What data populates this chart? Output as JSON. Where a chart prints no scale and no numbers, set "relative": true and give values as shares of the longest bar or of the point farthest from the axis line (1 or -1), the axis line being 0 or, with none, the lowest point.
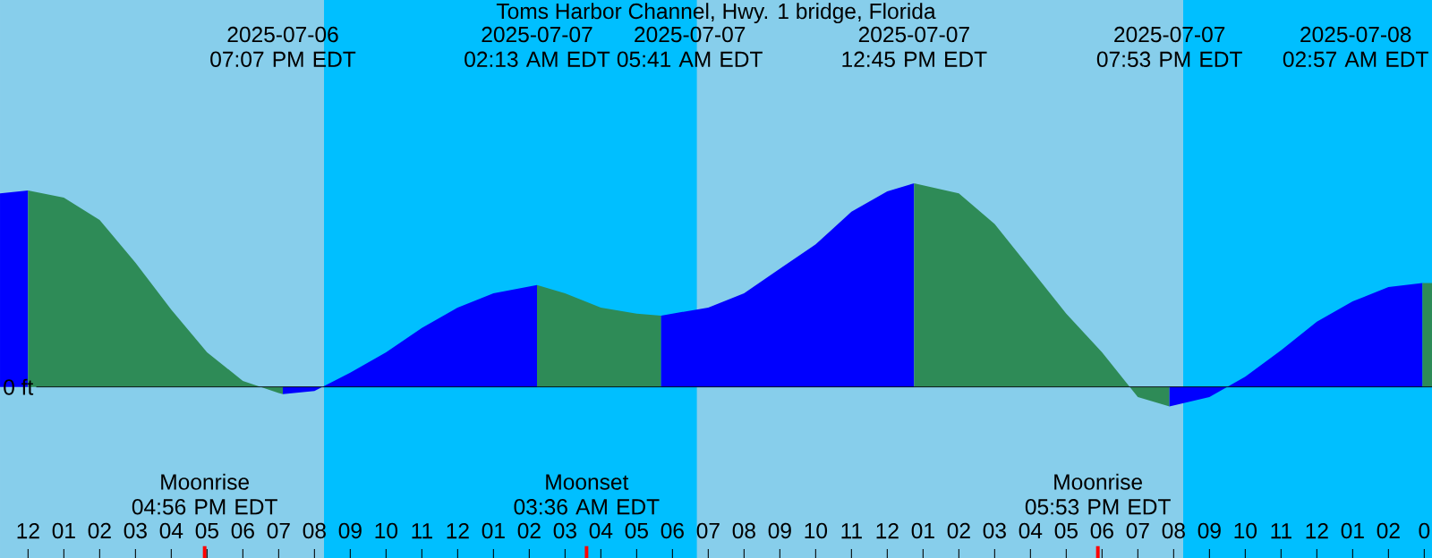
{
  "chart_data": {
    "type": "area",
    "title": "Toms Harbor Channel, Hwy. 1 bridge, Florida",
    "relative": true,
    "xlim": [
      "2025-07-06T11:13",
      "2025-07-08T03:13"
    ],
    "xticks": [
      {
        "value": "2025-07-06T12:00",
        "label": "12"
      },
      {
        "value": "2025-07-06T13:00",
        "label": "01"
      },
      {
        "value": "2025-07-06T14:00",
        "label": "02"
      },
      {
        "value": "2025-07-06T15:00",
        "label": "03"
      },
      {
        "value": "2025-07-06T16:00",
        "label": "04"
      },
      {
        "value": "2025-07-06T17:00",
        "label": "05"
      },
      {
        "value": "2025-07-06T18:00",
        "label": "06"
      },
      {
        "value": "2025-07-06T19:00",
        "label": "07"
      },
      {
        "value": "2025-07-06T20:00",
        "label": "08"
      },
      {
        "value": "2025-07-06T21:00",
        "label": "09"
      },
      {
        "value": "2025-07-06T22:00",
        "label": "10"
      },
      {
        "value": "2025-07-06T23:00",
        "label": "11"
      },
      {
        "value": "2025-07-07T00:00",
        "label": "12"
      },
      {
        "value": "2025-07-07T01:00",
        "label": "01"
      },
      {
        "value": "2025-07-07T02:00",
        "label": "02"
      },
      {
        "value": "2025-07-07T03:00",
        "label": "03"
      },
      {
        "value": "2025-07-07T04:00",
        "label": "04"
      },
      {
        "value": "2025-07-07T05:00",
        "label": "05"
      },
      {
        "value": "2025-07-07T06:00",
        "label": "06"
      },
      {
        "value": "2025-07-07T07:00",
        "label": "07"
      },
      {
        "value": "2025-07-07T08:00",
        "label": "08"
      },
      {
        "value": "2025-07-07T09:00",
        "label": "09"
      },
      {
        "value": "2025-07-07T10:00",
        "label": "10"
      },
      {
        "value": "2025-07-07T11:00",
        "label": "11"
      },
      {
        "value": "2025-07-07T12:00",
        "label": "12"
      },
      {
        "value": "2025-07-07T13:00",
        "label": "01"
      },
      {
        "value": "2025-07-07T14:00",
        "label": "02"
      },
      {
        "value": "2025-07-07T15:00",
        "label": "03"
      },
      {
        "value": "2025-07-07T16:00",
        "label": "04"
      },
      {
        "value": "2025-07-07T17:00",
        "label": "05"
      },
      {
        "value": "2025-07-07T18:00",
        "label": "06"
      },
      {
        "value": "2025-07-07T19:00",
        "label": "07"
      },
      {
        "value": "2025-07-07T20:00",
        "label": "08"
      },
      {
        "value": "2025-07-07T21:00",
        "label": "09"
      },
      {
        "value": "2025-07-07T22:00",
        "label": "10"
      },
      {
        "value": "2025-07-07T23:00",
        "label": "11"
      },
      {
        "value": "2025-07-08T00:00",
        "label": "12"
      },
      {
        "value": "2025-07-08T01:00",
        "label": "01"
      },
      {
        "value": "2025-07-08T02:00",
        "label": "02"
      },
      {
        "value": "2025-07-08T03:00",
        "label": "0"
      }
    ],
    "series": [
      {
        "color": "#0000ff",
        "x": [
          "2025-07-06T11:13",
          "2025-07-06T12:00"
        ],
        "values": [
          0.95,
          0.965
        ]
      },
      {
        "color": "#2e8b57",
        "x": [
          "2025-07-06T12:00",
          "2025-07-06T13:00",
          "2025-07-06T14:00",
          "2025-07-06T15:00",
          "2025-07-06T16:00",
          "2025-07-06T17:00",
          "2025-07-06T18:00",
          "2025-07-06T19:00",
          "2025-07-06T19:07"
        ],
        "values": [
          0.965,
          0.93,
          0.82,
          0.61,
          0.38,
          0.17,
          0.03,
          -0.03,
          -0.035
        ]
      },
      {
        "color": "#0000ff",
        "x": [
          "2025-07-06T19:07",
          "2025-07-06T20:00",
          "2025-07-06T21:00",
          "2025-07-06T22:00",
          "2025-07-06T23:00",
          "2025-07-07T00:00",
          "2025-07-07T01:00",
          "2025-07-07T02:13"
        ],
        "values": [
          -0.035,
          -0.02,
          0.07,
          0.17,
          0.29,
          0.39,
          0.46,
          0.5
        ]
      },
      {
        "color": "#2e8b57",
        "x": [
          "2025-07-07T02:13",
          "2025-07-07T03:00",
          "2025-07-07T04:00",
          "2025-07-07T05:00",
          "2025-07-07T05:41"
        ],
        "values": [
          0.5,
          0.46,
          0.39,
          0.36,
          0.35
        ]
      },
      {
        "color": "#0000ff",
        "x": [
          "2025-07-07T05:41",
          "2025-07-07T06:00",
          "2025-07-07T07:00",
          "2025-07-07T08:00",
          "2025-07-07T09:00",
          "2025-07-07T10:00",
          "2025-07-07T11:00",
          "2025-07-07T12:00",
          "2025-07-07T12:45"
        ],
        "values": [
          0.35,
          0.36,
          0.39,
          0.46,
          0.58,
          0.7,
          0.86,
          0.96,
          1
        ]
      },
      {
        "color": "#2e8b57",
        "x": [
          "2025-07-07T12:45",
          "2025-07-07T14:00",
          "2025-07-07T15:00",
          "2025-07-07T16:00",
          "2025-07-07T17:00",
          "2025-07-07T18:00",
          "2025-07-07T19:00",
          "2025-07-07T19:53"
        ],
        "values": [
          1,
          0.95,
          0.8,
          0.58,
          0.36,
          0.17,
          -0.05,
          -0.096
        ]
      },
      {
        "color": "#0000ff",
        "x": [
          "2025-07-07T19:53",
          "2025-07-07T21:00",
          "2025-07-07T22:00",
          "2025-07-07T23:00",
          "2025-07-08T00:00",
          "2025-07-08T01:00",
          "2025-07-08T02:00",
          "2025-07-08T02:57"
        ],
        "values": [
          -0.096,
          -0.05,
          0.05,
          0.18,
          0.32,
          0.42,
          0.49,
          0.51
        ]
      },
      {
        "color": "#2e8b57",
        "x": [
          "2025-07-08T02:57",
          "2025-07-08T03:13"
        ],
        "values": [
          0.51,
          0.51
        ]
      }
    ],
    "bands": [
      {
        "axis": "x",
        "from": "2025-07-06T20:16",
        "to": "2025-07-07T06:41",
        "color": "#00bfff"
      },
      {
        "axis": "x",
        "from": "2025-07-07T20:16",
        "to": "2025-07-08T03:13",
        "color": "#00bfff"
      }
    ],
    "ref_lines": [
      {
        "axis": "y",
        "value": 0,
        "label": "0 ft",
        "color": "#000000"
      },
      {
        "axis": "x",
        "value": "2025-07-06T16:56",
        "label": "Moonrise 04:56 PM EDT",
        "color": "#ff0000"
      },
      {
        "axis": "x",
        "value": "2025-07-07T03:36",
        "label": "Moonset 03:36 AM EDT",
        "color": "#ff0000"
      },
      {
        "axis": "x",
        "value": "2025-07-07T17:53",
        "label": "Moonrise 05:53 PM EDT",
        "color": "#ff0000"
      }
    ],
    "annotations": [
      "2025-07-06 07:07 PM EDT",
      "2025-07-07 02:13 AM EDT",
      "2025-07-07 05:41 AM EDT",
      "2025-07-07 12:45 PM EDT",
      "2025-07-07 07:53 PM EDT",
      "2025-07-08 02:57 AM EDT"
    ]
  }
}
